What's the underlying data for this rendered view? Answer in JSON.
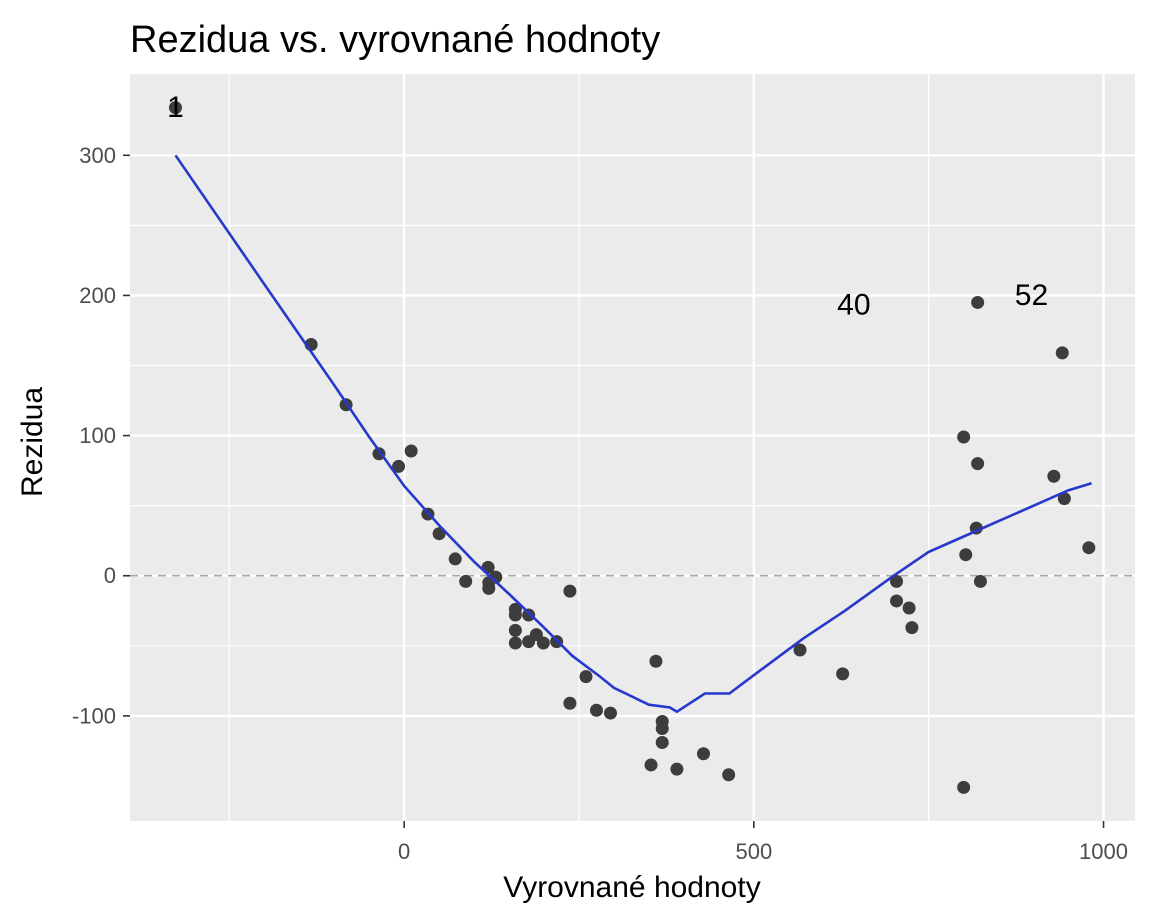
{
  "chart_data": {
    "type": "scatter",
    "title": "Rezidua vs. vyrovnané hodnoty",
    "xlabel": "Vyrovnané hodnoty",
    "ylabel": "Rezidua",
    "xlim": [
      -392,
      1045
    ],
    "ylim": [
      -175,
      358
    ],
    "x_ticks": [
      0,
      500,
      1000
    ],
    "x_tick_labels": [
      "0",
      "500",
      "1000"
    ],
    "y_ticks": [
      -100,
      0,
      100,
      200,
      300
    ],
    "y_tick_labels": [
      "-100",
      "0",
      "100",
      "200",
      "300"
    ],
    "x_minor_ticks": [
      -250,
      250,
      750
    ],
    "y_minor_ticks": [
      -50,
      50,
      150,
      250
    ],
    "grid": true,
    "reference_line": {
      "y": 0,
      "style": "dashed",
      "color": "#a6a6a6"
    },
    "colors": {
      "panel": "#ebebeb",
      "grid": "#ffffff",
      "points": "#3d3d3d",
      "smooth": "#2738cc"
    },
    "points": [
      {
        "x": -327,
        "y": 334
      },
      {
        "x": -133,
        "y": 165
      },
      {
        "x": -83,
        "y": 122
      },
      {
        "x": -36,
        "y": 87
      },
      {
        "x": -8,
        "y": 78
      },
      {
        "x": 10,
        "y": 89
      },
      {
        "x": 34,
        "y": 44
      },
      {
        "x": 50,
        "y": 30
      },
      {
        "x": 73,
        "y": 12
      },
      {
        "x": 88,
        "y": -4
      },
      {
        "x": 120,
        "y": 6
      },
      {
        "x": 121,
        "y": -5
      },
      {
        "x": 121,
        "y": -9
      },
      {
        "x": 131,
        "y": -1
      },
      {
        "x": 159,
        "y": -24
      },
      {
        "x": 159,
        "y": -28
      },
      {
        "x": 159,
        "y": -39
      },
      {
        "x": 159,
        "y": -48
      },
      {
        "x": 178,
        "y": -28
      },
      {
        "x": 178,
        "y": -47
      },
      {
        "x": 189,
        "y": -42
      },
      {
        "x": 199,
        "y": -48
      },
      {
        "x": 218,
        "y": -47
      },
      {
        "x": 237,
        "y": -11
      },
      {
        "x": 237,
        "y": -91
      },
      {
        "x": 260,
        "y": -72
      },
      {
        "x": 275,
        "y": -96
      },
      {
        "x": 295,
        "y": -98
      },
      {
        "x": 353,
        "y": -135
      },
      {
        "x": 360,
        "y": -61
      },
      {
        "x": 369,
        "y": -104
      },
      {
        "x": 369,
        "y": -109
      },
      {
        "x": 369,
        "y": -119
      },
      {
        "x": 390,
        "y": -138
      },
      {
        "x": 428,
        "y": -127
      },
      {
        "x": 464,
        "y": -142
      },
      {
        "x": 566,
        "y": -53
      },
      {
        "x": 627,
        "y": -70
      },
      {
        "x": 704,
        "y": -4
      },
      {
        "x": 704,
        "y": -18
      },
      {
        "x": 722,
        "y": -23
      },
      {
        "x": 726,
        "y": -37
      },
      {
        "x": 800,
        "y": 99
      },
      {
        "x": 800,
        "y": -151
      },
      {
        "x": 803,
        "y": 15
      },
      {
        "x": 818,
        "y": 34
      },
      {
        "x": 820,
        "y": 195
      },
      {
        "x": 820,
        "y": 80
      },
      {
        "x": 824,
        "y": -4
      },
      {
        "x": 929,
        "y": 71
      },
      {
        "x": 941,
        "y": 159
      },
      {
        "x": 944,
        "y": 55
      },
      {
        "x": 979,
        "y": 20
      }
    ],
    "smooth_line": {
      "x": [
        -327,
        -200,
        -100,
        -50,
        0,
        50,
        100,
        150,
        200,
        240,
        280,
        300,
        350,
        380,
        390,
        430,
        465,
        500,
        570,
        630,
        700,
        750,
        800,
        850,
        900,
        950,
        983
      ],
      "y": [
        300,
        208,
        136,
        99,
        64,
        36,
        10,
        -13,
        -37,
        -57,
        -72,
        -80,
        -92,
        -94,
        -97,
        -84,
        -84,
        -71,
        -45,
        -25,
        0,
        17,
        28,
        39,
        50,
        61,
        66
      ]
    },
    "annotations": [
      {
        "label": "1",
        "x": -327,
        "y": 334
      },
      {
        "label": "40",
        "x": 643,
        "y": 193
      },
      {
        "label": "52",
        "x": 897,
        "y": 200
      }
    ]
  }
}
